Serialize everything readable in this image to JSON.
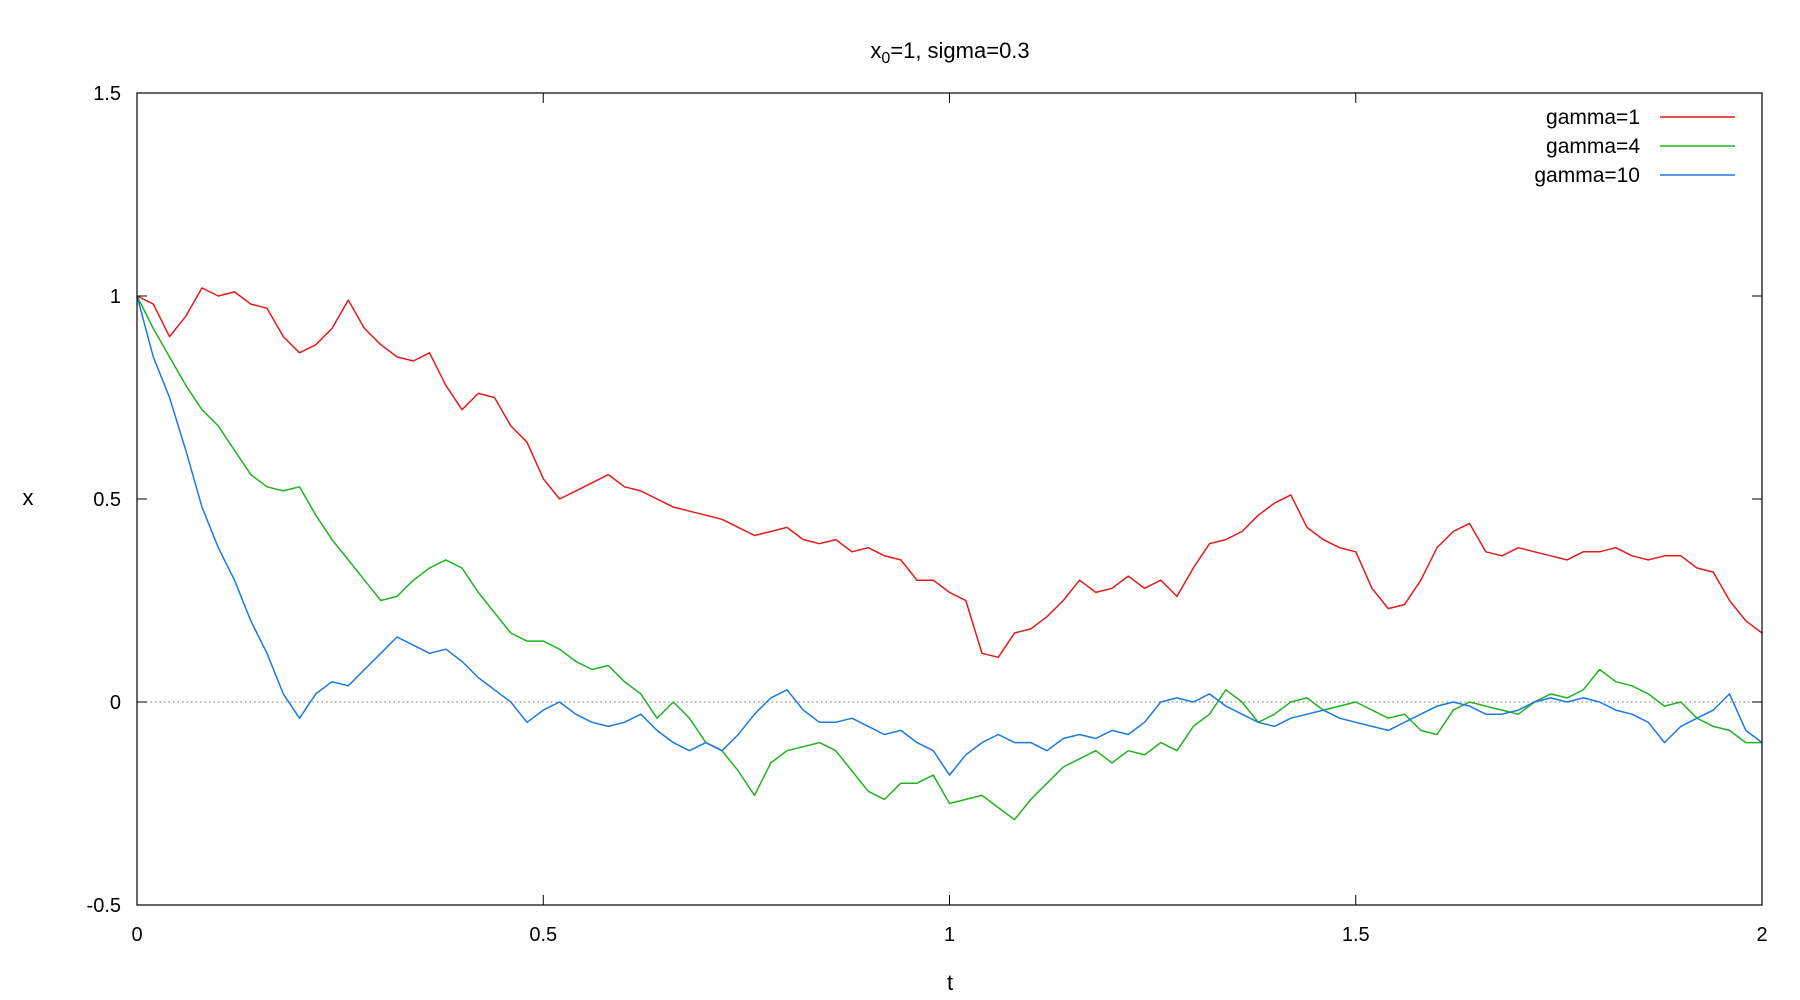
{
  "chart_data": {
    "type": "line",
    "title": {
      "main": "x",
      "subscript": "0",
      "rest": "=1, sigma=0.3"
    },
    "xlabel": "t",
    "ylabel": "x",
    "xlim": [
      0,
      2
    ],
    "ylim": [
      -0.5,
      1.5
    ],
    "xticks": [
      {
        "value": 0,
        "label": "0"
      },
      {
        "value": 0.5,
        "label": "0.5"
      },
      {
        "value": 1,
        "label": "1"
      },
      {
        "value": 1.5,
        "label": "1.5"
      },
      {
        "value": 2,
        "label": "2"
      }
    ],
    "yticks": [
      {
        "value": -0.5,
        "label": "-0.5"
      },
      {
        "value": 0,
        "label": "0"
      },
      {
        "value": 0.5,
        "label": "0.5"
      },
      {
        "value": 1,
        "label": "1"
      },
      {
        "value": 1.5,
        "label": "1.5"
      }
    ],
    "zero_line": true,
    "grid": false,
    "legend_position": "top-right",
    "series": [
      {
        "name": "gamma=1",
        "color": "#e41a1c",
        "x": [
          0,
          0.02,
          0.04,
          0.06,
          0.08,
          0.1,
          0.12,
          0.14,
          0.16,
          0.18,
          0.2,
          0.22,
          0.24,
          0.26,
          0.28,
          0.3,
          0.32,
          0.34,
          0.36,
          0.38,
          0.4,
          0.42,
          0.44,
          0.46,
          0.48,
          0.5,
          0.52,
          0.54,
          0.56,
          0.58,
          0.6,
          0.62,
          0.64,
          0.66,
          0.68,
          0.7,
          0.72,
          0.74,
          0.76,
          0.78,
          0.8,
          0.82,
          0.84,
          0.86,
          0.88,
          0.9,
          0.92,
          0.94,
          0.96,
          0.98,
          1,
          1.02,
          1.04,
          1.06,
          1.08,
          1.1,
          1.12,
          1.14,
          1.16,
          1.18,
          1.2,
          1.22,
          1.24,
          1.26,
          1.28,
          1.3,
          1.32,
          1.34,
          1.36,
          1.38,
          1.4,
          1.42,
          1.44,
          1.46,
          1.48,
          1.5,
          1.52,
          1.54,
          1.56,
          1.58,
          1.6,
          1.62,
          1.64,
          1.66,
          1.68,
          1.7,
          1.72,
          1.74,
          1.76,
          1.78,
          1.8,
          1.82,
          1.84,
          1.86,
          1.88,
          1.9,
          1.92,
          1.94,
          1.96,
          1.98,
          2
        ],
        "y": [
          1,
          0.98,
          0.9,
          0.95,
          1.02,
          1.0,
          1.01,
          0.98,
          0.97,
          0.9,
          0.86,
          0.88,
          0.92,
          0.99,
          0.92,
          0.88,
          0.85,
          0.84,
          0.86,
          0.78,
          0.72,
          0.76,
          0.75,
          0.68,
          0.64,
          0.55,
          0.5,
          0.52,
          0.54,
          0.56,
          0.53,
          0.52,
          0.5,
          0.48,
          0.47,
          0.46,
          0.45,
          0.43,
          0.41,
          0.42,
          0.43,
          0.4,
          0.39,
          0.4,
          0.37,
          0.38,
          0.36,
          0.35,
          0.3,
          0.3,
          0.27,
          0.25,
          0.12,
          0.11,
          0.17,
          0.18,
          0.21,
          0.25,
          0.3,
          0.27,
          0.28,
          0.31,
          0.28,
          0.3,
          0.26,
          0.33,
          0.39,
          0.4,
          0.42,
          0.46,
          0.49,
          0.51,
          0.43,
          0.4,
          0.38,
          0.37,
          0.28,
          0.23,
          0.24,
          0.3,
          0.38,
          0.42,
          0.44,
          0.37,
          0.36,
          0.38,
          0.37,
          0.36,
          0.35,
          0.37,
          0.37,
          0.38,
          0.36,
          0.35,
          0.36,
          0.36,
          0.33,
          0.32,
          0.25,
          0.2,
          0.17
        ]
      },
      {
        "name": "gamma=4",
        "color": "#1fb41f",
        "x": [
          0,
          0.02,
          0.04,
          0.06,
          0.08,
          0.1,
          0.12,
          0.14,
          0.16,
          0.18,
          0.2,
          0.22,
          0.24,
          0.26,
          0.28,
          0.3,
          0.32,
          0.34,
          0.36,
          0.38,
          0.4,
          0.42,
          0.44,
          0.46,
          0.48,
          0.5,
          0.52,
          0.54,
          0.56,
          0.58,
          0.6,
          0.62,
          0.64,
          0.66,
          0.68,
          0.7,
          0.72,
          0.74,
          0.76,
          0.78,
          0.8,
          0.82,
          0.84,
          0.86,
          0.88,
          0.9,
          0.92,
          0.94,
          0.96,
          0.98,
          1,
          1.02,
          1.04,
          1.06,
          1.08,
          1.1,
          1.12,
          1.14,
          1.16,
          1.18,
          1.2,
          1.22,
          1.24,
          1.26,
          1.28,
          1.3,
          1.32,
          1.34,
          1.36,
          1.38,
          1.4,
          1.42,
          1.44,
          1.46,
          1.48,
          1.5,
          1.52,
          1.54,
          1.56,
          1.58,
          1.6,
          1.62,
          1.64,
          1.66,
          1.68,
          1.7,
          1.72,
          1.74,
          1.76,
          1.78,
          1.8,
          1.82,
          1.84,
          1.86,
          1.88,
          1.9,
          1.92,
          1.94,
          1.96,
          1.98,
          2
        ],
        "y": [
          1,
          0.92,
          0.85,
          0.78,
          0.72,
          0.68,
          0.62,
          0.56,
          0.53,
          0.52,
          0.53,
          0.46,
          0.4,
          0.35,
          0.3,
          0.25,
          0.26,
          0.3,
          0.33,
          0.35,
          0.33,
          0.27,
          0.22,
          0.17,
          0.15,
          0.15,
          0.13,
          0.1,
          0.08,
          0.09,
          0.05,
          0.02,
          -0.04,
          0.0,
          -0.04,
          -0.1,
          -0.12,
          -0.17,
          -0.23,
          -0.15,
          -0.12,
          -0.11,
          -0.1,
          -0.12,
          -0.17,
          -0.22,
          -0.24,
          -0.2,
          -0.2,
          -0.18,
          -0.25,
          -0.24,
          -0.23,
          -0.26,
          -0.29,
          -0.24,
          -0.2,
          -0.16,
          -0.14,
          -0.12,
          -0.15,
          -0.12,
          -0.13,
          -0.1,
          -0.12,
          -0.06,
          -0.03,
          0.03,
          0.0,
          -0.05,
          -0.03,
          0.0,
          0.01,
          -0.02,
          -0.01,
          0.0,
          -0.02,
          -0.04,
          -0.03,
          -0.07,
          -0.08,
          -0.02,
          0.0,
          -0.01,
          -0.02,
          -0.03,
          0.0,
          0.02,
          0.01,
          0.03,
          0.08,
          0.05,
          0.04,
          0.02,
          -0.01,
          0.0,
          -0.04,
          -0.06,
          -0.07,
          -0.1,
          -0.1
        ]
      },
      {
        "name": "gamma=10",
        "color": "#1a7ae0",
        "x": [
          0,
          0.02,
          0.04,
          0.06,
          0.08,
          0.1,
          0.12,
          0.14,
          0.16,
          0.18,
          0.2,
          0.22,
          0.24,
          0.26,
          0.28,
          0.3,
          0.32,
          0.34,
          0.36,
          0.38,
          0.4,
          0.42,
          0.44,
          0.46,
          0.48,
          0.5,
          0.52,
          0.54,
          0.56,
          0.58,
          0.6,
          0.62,
          0.64,
          0.66,
          0.68,
          0.7,
          0.72,
          0.74,
          0.76,
          0.78,
          0.8,
          0.82,
          0.84,
          0.86,
          0.88,
          0.9,
          0.92,
          0.94,
          0.96,
          0.98,
          1,
          1.02,
          1.04,
          1.06,
          1.08,
          1.1,
          1.12,
          1.14,
          1.16,
          1.18,
          1.2,
          1.22,
          1.24,
          1.26,
          1.28,
          1.3,
          1.32,
          1.34,
          1.36,
          1.38,
          1.4,
          1.42,
          1.44,
          1.46,
          1.48,
          1.5,
          1.52,
          1.54,
          1.56,
          1.58,
          1.6,
          1.62,
          1.64,
          1.66,
          1.68,
          1.7,
          1.72,
          1.74,
          1.76,
          1.78,
          1.8,
          1.82,
          1.84,
          1.86,
          1.88,
          1.9,
          1.92,
          1.94,
          1.96,
          1.98,
          2
        ],
        "y": [
          1,
          0.85,
          0.75,
          0.62,
          0.48,
          0.38,
          0.3,
          0.2,
          0.12,
          0.02,
          -0.04,
          0.02,
          0.05,
          0.04,
          0.08,
          0.12,
          0.16,
          0.14,
          0.12,
          0.13,
          0.1,
          0.06,
          0.03,
          0.0,
          -0.05,
          -0.02,
          0.0,
          -0.03,
          -0.05,
          -0.06,
          -0.05,
          -0.03,
          -0.07,
          -0.1,
          -0.12,
          -0.1,
          -0.12,
          -0.08,
          -0.03,
          0.01,
          0.03,
          -0.02,
          -0.05,
          -0.05,
          -0.04,
          -0.06,
          -0.08,
          -0.07,
          -0.1,
          -0.12,
          -0.18,
          -0.13,
          -0.1,
          -0.08,
          -0.1,
          -0.1,
          -0.12,
          -0.09,
          -0.08,
          -0.09,
          -0.07,
          -0.08,
          -0.05,
          0.0,
          0.01,
          0.0,
          0.02,
          -0.01,
          -0.03,
          -0.05,
          -0.06,
          -0.04,
          -0.03,
          -0.02,
          -0.04,
          -0.05,
          -0.06,
          -0.07,
          -0.05,
          -0.03,
          -0.01,
          0.0,
          -0.01,
          -0.03,
          -0.03,
          -0.02,
          0.0,
          0.01,
          0.0,
          0.01,
          0.0,
          -0.02,
          -0.03,
          -0.05,
          -0.1,
          -0.06,
          -0.04,
          -0.02,
          0.02,
          -0.07,
          -0.1
        ]
      }
    ]
  }
}
